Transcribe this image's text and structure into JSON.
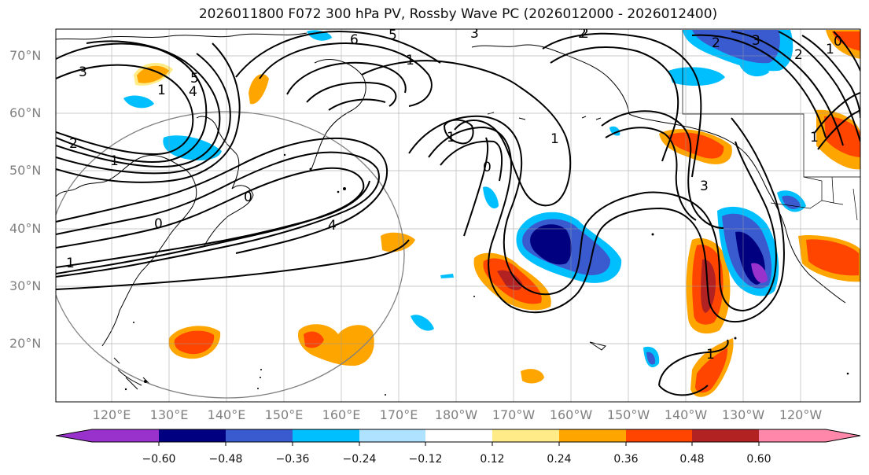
{
  "title": "2026011800 F072 300 hPa PV, Rossby Wave PC (2026012000 - 2026012400)",
  "lat_labels": [
    "70°N",
    "60°N",
    "50°N",
    "40°N",
    "30°N",
    "20°N"
  ],
  "lon_labels": [
    "120°E",
    "130°E",
    "140°E",
    "150°E",
    "160°E",
    "170°E",
    "180°W",
    "170°W",
    "160°W",
    "150°W",
    "140°W",
    "130°W",
    "120°W"
  ],
  "colorbar": {
    "ticks": [
      "−0.60",
      "−0.48",
      "−0.36",
      "−0.24",
      "−0.12",
      "0.12",
      "0.24",
      "0.36",
      "0.48",
      "0.60"
    ],
    "colors": [
      "#9932cc",
      "#000080",
      "#3a5bd0",
      "#00bfff",
      "#aee2ff",
      "#ffffff",
      "#ffeb87",
      "#ffa500",
      "#ff4500",
      "#b22222",
      "#ff88aa"
    ]
  },
  "contour_labels": [
    "3",
    "2",
    "1",
    "6",
    "5",
    "3",
    "2",
    "1",
    "5",
    "4",
    "2",
    "1",
    "3",
    "2",
    "1",
    "0",
    "1",
    "0",
    "1",
    "4",
    "0",
    "1",
    "0",
    "3",
    "2",
    "1",
    "1"
  ],
  "colors": {
    "contour": "#000000",
    "grid": "#999999",
    "coast": "#000000",
    "axis_label": "#808080"
  }
}
